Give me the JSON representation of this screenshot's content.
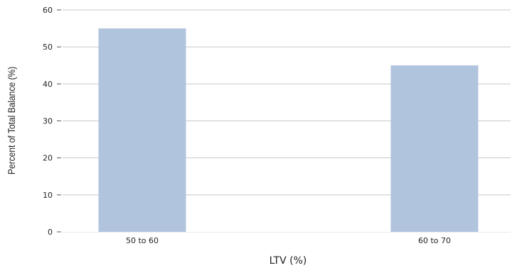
{
  "chart_data": {
    "type": "bar",
    "categories": [
      "50 to 60",
      "60 to 70"
    ],
    "values": [
      55,
      45
    ],
    "title": "",
    "xlabel": "LTV (%)",
    "ylabel": "Percent of Total Balance (%)",
    "ylim": [
      0,
      60
    ],
    "yticks": [
      0,
      10,
      20,
      30,
      40,
      50,
      60
    ],
    "grid": true,
    "legend": "none",
    "colors": {
      "bar": "#b0c4de",
      "grid": "#c8c8c8",
      "text": "#222222"
    }
  }
}
